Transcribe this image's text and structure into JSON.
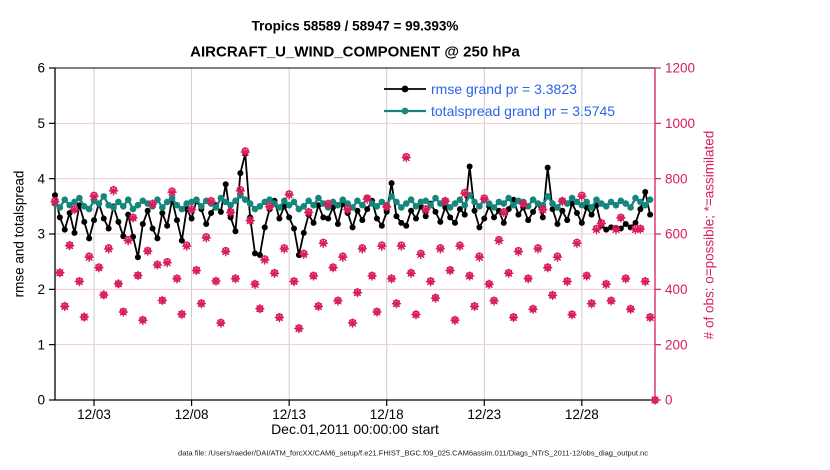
{
  "title": {
    "line1": "Tropics 58589 / 58947 = 99.393%",
    "line2": "AIRCRAFT_U_WIND_COMPONENT @ 250 hPa"
  },
  "footer": "data file: /Users/raeder/DAI/ATM_forcXX/CAM6_setup/f.e21.FHIST_BGC.f09_025.CAM6assim.011/Diags_NTrS_2011-12/obs_diag_output.nc",
  "colors": {
    "rmse": "#000000",
    "totalspread": "#16867d",
    "obs": "#d81e5c",
    "legend_text": "#2b64e6",
    "grid_horizontal": "#f3ccd8",
    "grid_vertical": "#cccccc",
    "axis_left": "#000000",
    "axis_right": "#d81e5c",
    "tick_label_left": "#000000",
    "tick_label_right": "#d81e5c"
  },
  "chart_data": {
    "type": "line",
    "title": "Tropics 58589 / 58947 = 99.393% — AIRCRAFT_U_WIND_COMPONENT @ 250 hPa",
    "xlabel": "Dec.01,2011 00:00:00 start",
    "ylabel_left": "rmse and totalspread",
    "ylabel_right": "# of obs: o=possible; *=assimilated",
    "ylim_left": [
      0,
      6
    ],
    "yticks_left": [
      0,
      1,
      2,
      3,
      4,
      5,
      6
    ],
    "ylim_right": [
      0,
      1200
    ],
    "yticks_right": [
      0,
      200,
      400,
      600,
      800,
      1000,
      1200
    ],
    "grid": true,
    "x_start_label": "Dec.01,2011 00:00:00",
    "x_max_days": 30.75,
    "time_step_days": 0.25,
    "xticks": [
      {
        "t": 2,
        "label": "12/03"
      },
      {
        "t": 7,
        "label": "12/08"
      },
      {
        "t": 12,
        "label": "12/13"
      },
      {
        "t": 17,
        "label": "12/18"
      },
      {
        "t": 22,
        "label": "12/23"
      },
      {
        "t": 27,
        "label": "12/28"
      }
    ],
    "legend": [
      {
        "label": "rmse grand pr = 3.3823",
        "series": "rmse"
      },
      {
        "label": "totalspread grand pr = 3.5745",
        "series": "totalspread"
      }
    ],
    "grand_pr": {
      "rmse": 3.3823,
      "totalspread": 3.5745
    },
    "obs_counts": {
      "assimilated_total": 58589,
      "possible_total": 58947,
      "percent": 99.393
    },
    "series": [
      {
        "name": "rmse",
        "axis": "left",
        "style": "line-dot",
        "values": [
          3.7,
          3.3,
          3.08,
          3.38,
          3.02,
          3.52,
          3.22,
          2.92,
          3.25,
          3.55,
          3.28,
          3.1,
          3.5,
          3.22,
          2.96,
          3.35,
          2.95,
          2.58,
          3.18,
          3.42,
          3.1,
          2.92,
          3.38,
          3.15,
          3.62,
          3.25,
          2.88,
          3.45,
          3.28,
          3.6,
          3.45,
          3.18,
          3.38,
          3.52,
          3.4,
          3.9,
          3.3,
          3.05,
          4.1,
          4.45,
          3.3,
          2.65,
          2.62,
          3.12,
          3.45,
          3.6,
          3.28,
          3.5,
          3.3,
          3.1,
          2.62,
          3.02,
          3.35,
          3.2,
          3.52,
          3.3,
          3.28,
          3.48,
          3.18,
          3.55,
          3.38,
          3.12,
          3.42,
          3.25,
          3.45,
          3.6,
          3.28,
          3.15,
          3.4,
          3.92,
          3.32,
          3.2,
          3.15,
          3.42,
          3.28,
          3.5,
          3.32,
          3.55,
          3.4,
          3.22,
          3.48,
          3.3,
          3.2,
          3.45,
          3.35,
          4.22,
          3.42,
          3.12,
          3.28,
          3.5,
          3.3,
          3.42,
          3.2,
          3.45,
          3.62,
          3.35,
          3.48,
          3.25,
          3.4,
          3.55,
          3.3,
          4.2,
          3.45,
          3.18,
          3.42,
          3.25,
          3.55,
          3.38,
          3.2,
          3.48,
          3.35,
          3.52,
          3.15,
          3.08,
          3.12,
          3.1,
          3.1,
          3.18,
          3.12,
          3.2,
          3.45,
          3.76,
          3.35
        ]
      },
      {
        "name": "totalspread",
        "axis": "left",
        "style": "line-dot",
        "values": [
          3.55,
          3.48,
          3.62,
          3.52,
          3.58,
          3.65,
          3.5,
          3.45,
          3.6,
          3.55,
          3.68,
          3.52,
          3.48,
          3.58,
          3.5,
          3.62,
          3.45,
          3.52,
          3.6,
          3.55,
          3.5,
          3.62,
          3.48,
          3.58,
          3.65,
          3.52,
          3.45,
          3.55,
          3.58,
          3.62,
          3.5,
          3.6,
          3.55,
          3.48,
          3.65,
          3.58,
          3.52,
          3.6,
          3.7,
          3.62,
          3.55,
          3.45,
          3.5,
          3.58,
          3.62,
          3.55,
          3.48,
          3.6,
          3.52,
          3.58,
          3.45,
          3.5,
          3.6,
          3.52,
          3.65,
          3.55,
          3.48,
          3.58,
          3.52,
          3.62,
          3.55,
          3.48,
          3.6,
          3.52,
          3.65,
          3.55,
          3.5,
          3.58,
          3.52,
          3.68,
          3.58,
          3.48,
          3.55,
          3.62,
          3.5,
          3.58,
          3.6,
          3.52,
          3.65,
          3.55,
          3.58,
          3.48,
          3.55,
          3.62,
          3.52,
          3.7,
          3.58,
          3.5,
          3.62,
          3.55,
          3.48,
          3.58,
          3.55,
          3.65,
          3.52,
          3.6,
          3.58,
          3.5,
          3.62,
          3.55,
          3.52,
          3.68,
          3.55,
          3.48,
          3.6,
          3.55,
          3.65,
          3.58,
          3.52,
          3.58,
          3.48,
          3.62,
          3.55,
          3.5,
          3.58,
          3.52,
          3.6,
          3.55,
          3.48,
          3.65,
          3.58,
          3.52,
          3.62
        ]
      },
      {
        "name": "obs_possible",
        "axis": "right",
        "style": "marker-o",
        "values": [
          720,
          460,
          340,
          560,
          690,
          430,
          300,
          520,
          740,
          480,
          380,
          550,
          760,
          420,
          320,
          580,
          660,
          450,
          290,
          540,
          710,
          490,
          360,
          500,
          755,
          440,
          310,
          560,
          690,
          470,
          350,
          590,
          720,
          430,
          280,
          540,
          680,
          440,
          760,
          900,
          650,
          420,
          330,
          510,
          700,
          460,
          300,
          550,
          745,
          430,
          260,
          530,
          680,
          450,
          340,
          570,
          710,
          480,
          360,
          520,
          690,
          280,
          390,
          550,
          730,
          450,
          320,
          560,
          700,
          440,
          350,
          560,
          880,
          460,
          310,
          530,
          690,
          430,
          370,
          550,
          720,
          470,
          290,
          560,
          750,
          450,
          340,
          520,
          730,
          420,
          360,
          580,
          680,
          460,
          300,
          540,
          710,
          440,
          330,
          550,
          690,
          480,
          380,
          520,
          720,
          430,
          310,
          570,
          740,
          450,
          350,
          620,
          640,
          420,
          360,
          620,
          660,
          440,
          330,
          620,
          620,
          430,
          300,
          0
        ]
      },
      {
        "name": "obs_assimilated",
        "axis": "right",
        "style": "marker-asterisk",
        "values": [
          716,
          460,
          338,
          558,
          688,
          428,
          300,
          516,
          736,
          478,
          380,
          546,
          756,
          420,
          318,
          576,
          658,
          450,
          288,
          538,
          708,
          488,
          360,
          496,
          751,
          438,
          310,
          556,
          688,
          468,
          348,
          586,
          718,
          430,
          278,
          536,
          678,
          438,
          756,
          896,
          648,
          418,
          330,
          506,
          698,
          458,
          298,
          546,
          741,
          428,
          258,
          526,
          678,
          448,
          338,
          566,
          708,
          478,
          358,
          516,
          688,
          278,
          388,
          546,
          726,
          448,
          318,
          556,
          698,
          438,
          348,
          556,
          876,
          458,
          308,
          526,
          688,
          428,
          368,
          546,
          718,
          468,
          288,
          556,
          746,
          448,
          338,
          516,
          726,
          418,
          358,
          576,
          678,
          458,
          298,
          536,
          708,
          438,
          328,
          546,
          688,
          478,
          378,
          516,
          718,
          428,
          308,
          566,
          736,
          448,
          348,
          616,
          638,
          418,
          358,
          616,
          658,
          438,
          328,
          616,
          618,
          428,
          298,
          0
        ]
      }
    ]
  }
}
